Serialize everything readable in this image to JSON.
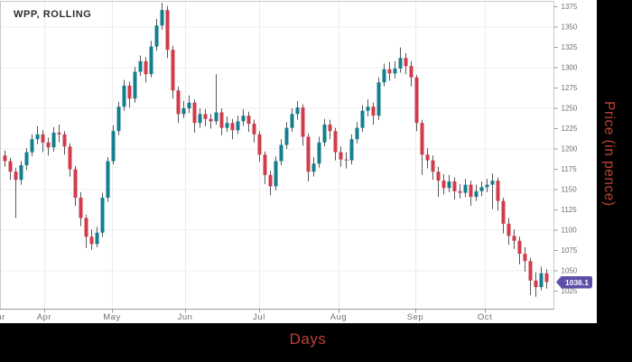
{
  "title": "WPP, ROLLING",
  "x_axis": {
    "title": "Days",
    "months": [
      {
        "label": "Mar",
        "x": -3
      },
      {
        "label": "Apr",
        "x": 49
      },
      {
        "label": "May",
        "x": 124
      },
      {
        "label": "Jun",
        "x": 205
      },
      {
        "label": "Jul",
        "x": 287
      },
      {
        "label": "Aug",
        "x": 375
      },
      {
        "label": "Sep",
        "x": 460
      },
      {
        "label": "Oct",
        "x": 537
      }
    ]
  },
  "y_axis": {
    "title": "Price (in pence)",
    "ticks": [
      1025,
      1050,
      1075,
      1100,
      1125,
      1150,
      1175,
      1200,
      1225,
      1250,
      1275,
      1300,
      1325,
      1350,
      1375
    ],
    "gridlines": [
      1050,
      1100,
      1150,
      1200,
      1250,
      1300,
      1350
    ]
  },
  "badge": {
    "value": "1036.1",
    "color": "#5c50a6"
  },
  "colors": {
    "up": "#137f8e",
    "down": "#d23b4b",
    "wick": "#58585a",
    "grid": "#ececec",
    "border": "#c9c9c9",
    "axis_text": "#6e6e6e",
    "axis_line": "#9a9a9a",
    "label_red": "#bf4136",
    "title_text": "#2e2e2e"
  },
  "chart_data": {
    "type": "candlestick",
    "title": "WPP, ROLLING",
    "xlabel": "Days",
    "ylabel": "Price (in pence)",
    "ylim": [
      1002,
      1381
    ],
    "y_tick_step": 25,
    "last_price": 1036.1,
    "x_categories_visible": [
      "Mar",
      "Apr",
      "May",
      "Jun",
      "Jul",
      "Aug",
      "Sep",
      "Oct"
    ],
    "legend": "none",
    "grid": "on",
    "candles_ohlc": [
      [
        1192,
        1198,
        1178,
        1185
      ],
      [
        1185,
        1189,
        1162,
        1172
      ],
      [
        1172,
        1177,
        1115,
        1162
      ],
      [
        1162,
        1185,
        1156,
        1180
      ],
      [
        1180,
        1201,
        1174,
        1196
      ],
      [
        1196,
        1218,
        1191,
        1212
      ],
      [
        1212,
        1228,
        1206,
        1218
      ],
      [
        1218,
        1223,
        1196,
        1208
      ],
      [
        1208,
        1214,
        1192,
        1202
      ],
      [
        1202,
        1227,
        1197,
        1220
      ],
      [
        1220,
        1230,
        1208,
        1218
      ],
      [
        1218,
        1222,
        1193,
        1203
      ],
      [
        1203,
        1207,
        1166,
        1175
      ],
      [
        1175,
        1179,
        1130,
        1140
      ],
      [
        1140,
        1147,
        1105,
        1115
      ],
      [
        1115,
        1119,
        1078,
        1092
      ],
      [
        1092,
        1101,
        1076,
        1083
      ],
      [
        1083,
        1104,
        1079,
        1097
      ],
      [
        1097,
        1146,
        1092,
        1140
      ],
      [
        1140,
        1190,
        1135,
        1185
      ],
      [
        1185,
        1229,
        1181,
        1222
      ],
      [
        1222,
        1258,
        1217,
        1252
      ],
      [
        1252,
        1285,
        1247,
        1278
      ],
      [
        1278,
        1283,
        1251,
        1262
      ],
      [
        1262,
        1301,
        1257,
        1295
      ],
      [
        1295,
        1315,
        1290,
        1308
      ],
      [
        1308,
        1313,
        1282,
        1292
      ],
      [
        1292,
        1333,
        1288,
        1326
      ],
      [
        1326,
        1360,
        1321,
        1352
      ],
      [
        1352,
        1380,
        1347,
        1371
      ],
      [
        1371,
        1376,
        1312,
        1322
      ],
      [
        1322,
        1327,
        1262,
        1272
      ],
      [
        1272,
        1277,
        1232,
        1243
      ],
      [
        1243,
        1259,
        1238,
        1250
      ],
      [
        1250,
        1266,
        1244,
        1257
      ],
      [
        1257,
        1261,
        1220,
        1232
      ],
      [
        1232,
        1250,
        1226,
        1243
      ],
      [
        1243,
        1249,
        1228,
        1237
      ],
      [
        1237,
        1243,
        1225,
        1234
      ],
      [
        1234,
        1292,
        1230,
        1245
      ],
      [
        1245,
        1250,
        1217,
        1226
      ],
      [
        1226,
        1240,
        1221,
        1232
      ],
      [
        1232,
        1237,
        1212,
        1223
      ],
      [
        1223,
        1241,
        1218,
        1234
      ],
      [
        1234,
        1249,
        1228,
        1241
      ],
      [
        1241,
        1246,
        1221,
        1231
      ],
      [
        1231,
        1236,
        1208,
        1218
      ],
      [
        1218,
        1222,
        1184,
        1193
      ],
      [
        1193,
        1197,
        1157,
        1168
      ],
      [
        1168,
        1173,
        1143,
        1154
      ],
      [
        1154,
        1191,
        1149,
        1185
      ],
      [
        1185,
        1212,
        1180,
        1205
      ],
      [
        1205,
        1233,
        1200,
        1226
      ],
      [
        1226,
        1250,
        1221,
        1243
      ],
      [
        1243,
        1259,
        1236,
        1251
      ],
      [
        1251,
        1255,
        1204,
        1215
      ],
      [
        1215,
        1219,
        1160,
        1172
      ],
      [
        1172,
        1190,
        1166,
        1182
      ],
      [
        1182,
        1215,
        1177,
        1208
      ],
      [
        1208,
        1237,
        1203,
        1230
      ],
      [
        1230,
        1236,
        1212,
        1222
      ],
      [
        1222,
        1226,
        1186,
        1196
      ],
      [
        1196,
        1203,
        1178,
        1187
      ],
      [
        1187,
        1196,
        1176,
        1186
      ],
      [
        1186,
        1218,
        1181,
        1212
      ],
      [
        1212,
        1233,
        1207,
        1226
      ],
      [
        1226,
        1254,
        1221,
        1247
      ],
      [
        1247,
        1261,
        1240,
        1252
      ],
      [
        1252,
        1257,
        1230,
        1241
      ],
      [
        1241,
        1288,
        1236,
        1282
      ],
      [
        1282,
        1305,
        1277,
        1298
      ],
      [
        1298,
        1307,
        1284,
        1293
      ],
      [
        1293,
        1308,
        1287,
        1299
      ],
      [
        1299,
        1325,
        1294,
        1312
      ],
      [
        1312,
        1318,
        1292,
        1302
      ],
      [
        1302,
        1308,
        1277,
        1288
      ],
      [
        1288,
        1291,
        1222,
        1232
      ],
      [
        1232,
        1236,
        1168,
        1193
      ],
      [
        1193,
        1201,
        1176,
        1186
      ],
      [
        1186,
        1192,
        1162,
        1172
      ],
      [
        1172,
        1178,
        1141,
        1161
      ],
      [
        1161,
        1169,
        1144,
        1152
      ],
      [
        1152,
        1168,
        1147,
        1160
      ],
      [
        1160,
        1165,
        1138,
        1148
      ],
      [
        1148,
        1157,
        1139,
        1146
      ],
      [
        1146,
        1163,
        1141,
        1156
      ],
      [
        1156,
        1161,
        1130,
        1141
      ],
      [
        1141,
        1156,
        1136,
        1148
      ],
      [
        1148,
        1160,
        1142,
        1153
      ],
      [
        1153,
        1163,
        1147,
        1156
      ],
      [
        1156,
        1170,
        1126,
        1161
      ],
      [
        1161,
        1165,
        1124,
        1136
      ],
      [
        1136,
        1140,
        1096,
        1108
      ],
      [
        1108,
        1115,
        1082,
        1093
      ],
      [
        1093,
        1101,
        1077,
        1087
      ],
      [
        1087,
        1092,
        1058,
        1071
      ],
      [
        1071,
        1079,
        1049,
        1062
      ],
      [
        1062,
        1066,
        1020,
        1038
      ],
      [
        1038,
        1048,
        1018,
        1030
      ],
      [
        1030,
        1055,
        1026,
        1047
      ],
      [
        1047,
        1052,
        1028,
        1036.1
      ]
    ]
  }
}
